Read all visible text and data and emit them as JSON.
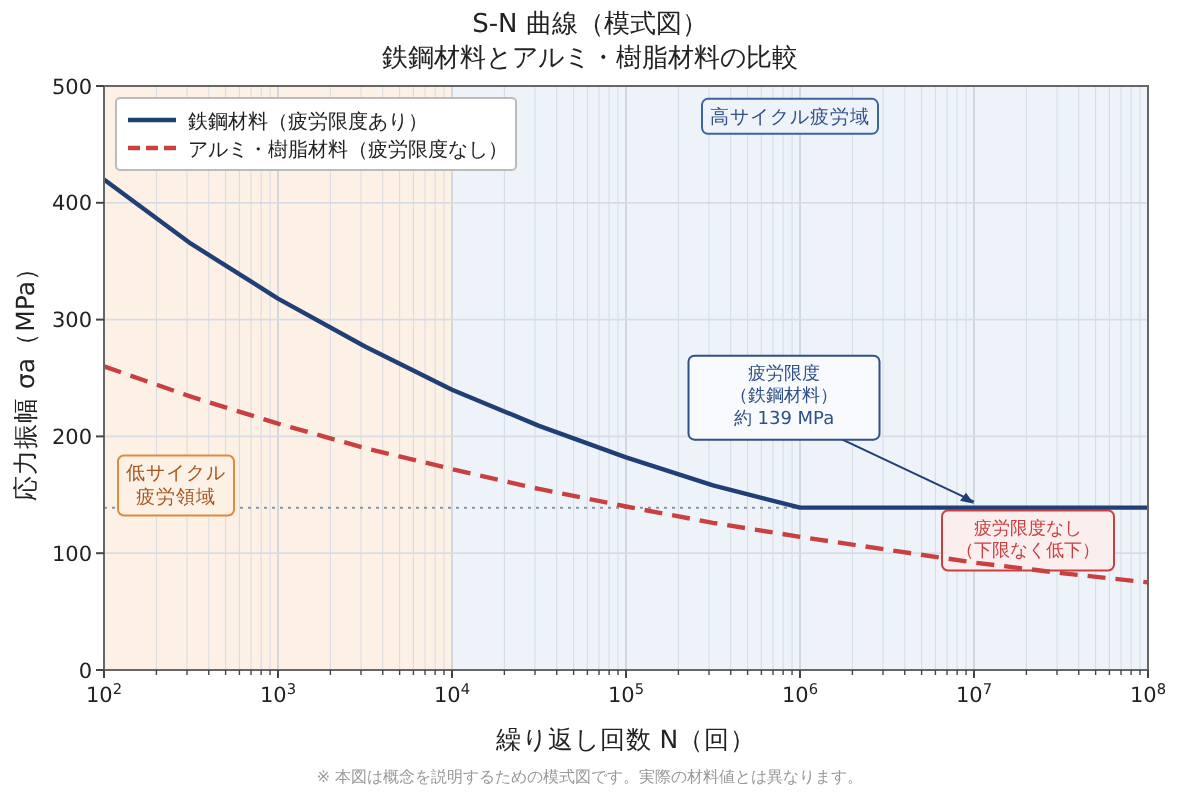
{
  "chart_data": {
    "type": "line",
    "title": "S-N 曲線（模式図）",
    "subtitle": "鉄鋼材料とアルミ・樹脂材料の比較",
    "xlabel": "繰り返し回数 N（回）",
    "ylabel": "応力振幅 σa（MPa）",
    "log": "x",
    "grid": true,
    "legend": "top left",
    "xlim": [
      100,
      100000000
    ],
    "ylim": [
      0,
      500
    ],
    "xticks": [
      {
        "value": 100,
        "label": "10$^{2}$"
      },
      {
        "value": 1000,
        "label": "10$^{3}$"
      },
      {
        "value": 10000,
        "label": "10$^{4}$"
      },
      {
        "value": 100000,
        "label": "10$^{5}$"
      },
      {
        "value": 1000000,
        "label": "10$^{6}$"
      },
      {
        "value": 10000000,
        "label": "10$^{7}$"
      },
      {
        "value": 100000000,
        "label": "10$^{8}$"
      }
    ],
    "yticks": [
      0,
      100,
      200,
      300,
      400,
      500
    ],
    "series": [
      {
        "name": "鉄鋼材料（疲労限度あり）",
        "color": "#1f3f75",
        "line_style": "solid",
        "x": [
          100,
          316,
          1000,
          3162,
          10000,
          31623,
          100000,
          316228,
          1000000,
          100000000
        ],
        "values": [
          420,
          365,
          318,
          277,
          240,
          209,
          182,
          158,
          139,
          139
        ]
      },
      {
        "name": "アルミ・樹脂材料（疲労限度なし）",
        "color": "#c94040",
        "line_style": "dashed",
        "x": [
          100,
          316,
          1000,
          3162,
          10000,
          31623,
          100000,
          316228,
          1000000,
          3162278,
          10000000,
          31622777,
          100000000
        ],
        "values": [
          260,
          234,
          211,
          190,
          172,
          155,
          140,
          126,
          114,
          103,
          92,
          83,
          75
        ]
      }
    ],
    "bands": [
      {
        "axis": "x",
        "from": 100,
        "to": 10000,
        "label": "低サイクル疲労領域",
        "color": "#fdf1e6"
      },
      {
        "axis": "x",
        "from": 10000,
        "to": 100000000,
        "label": "高サイクル疲労域",
        "color": "#eef3fa"
      }
    ],
    "ref_lines": [
      {
        "axis": "y",
        "value": 139,
        "color": "#8a96a8",
        "line_style": "dotted"
      }
    ],
    "annotations": [
      {
        "text": "疲労限度（鉄鋼材料）約 139 MPa",
        "x": 10000000,
        "y": 139
      },
      {
        "text": "疲労限度なし（下限なく低下）",
        "x": 10000000,
        "y": 92
      },
      "※ 本図は概念を説明するための模式図です。実際の材料値とは異なります。"
    ]
  }
}
